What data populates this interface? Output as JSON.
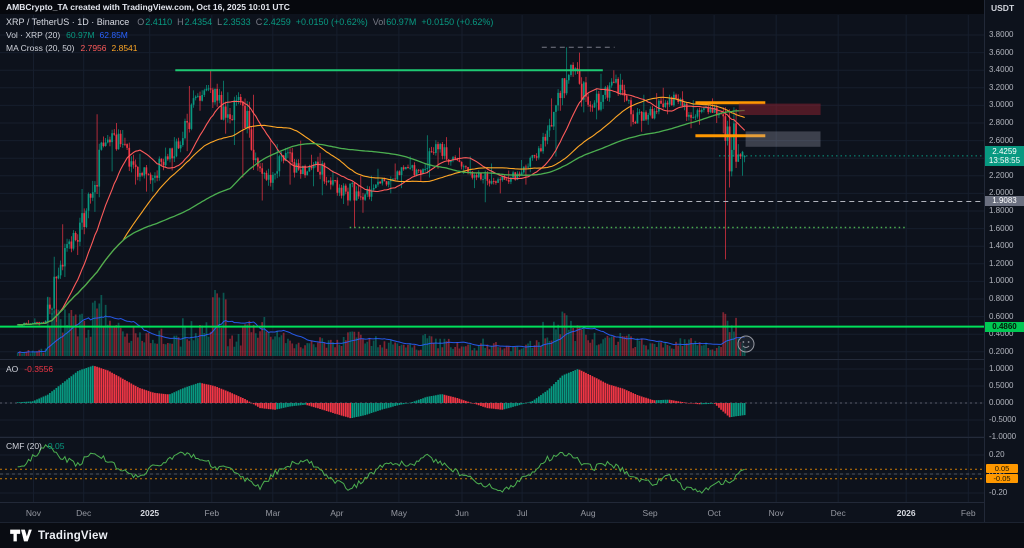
{
  "header": {
    "attribution": "AMBCrypto_TA created with TradingView.com, Oct 16, 2025 10:01 UTC",
    "currency": "USDT"
  },
  "legend": {
    "symbol": "XRP / TetherUS · 1D · Binance",
    "o_label": "O",
    "o": "2.4110",
    "h_label": "H",
    "h": "2.4354",
    "l_label": "L",
    "l": "2.3533",
    "c_label": "C",
    "c": "2.4259",
    "change": "+0.0150 (+0.62%)",
    "vol_label": "Vol",
    "vol": "60.97M",
    "change2": "+0.0150 (+0.62%)",
    "volume_indicator": {
      "title": "Vol · XRP (20)",
      "value": "60.97M",
      "ma": "62.85M"
    },
    "ma_indicator": {
      "title": "MA Cross (20, 50)",
      "ma20": "2.7956",
      "ma50": "2.8541"
    },
    "ao_indicator": {
      "title": "AO",
      "value": "-0.3556"
    },
    "cmf_indicator": {
      "title": "CMF (20)",
      "value": "0.05"
    }
  },
  "axis": {
    "price_label": "2.4259",
    "countdown": "13:58:55",
    "level_label_1": "1.9083",
    "level_label_2": "0.4860",
    "cmf_band_high": "0.05",
    "cmf_band_low": "-0.05"
  },
  "footer": {
    "brand": "TradingView"
  },
  "timeline": [
    {
      "text": "Nov",
      "t": 0.034
    },
    {
      "text": "Dec",
      "t": 0.085
    },
    {
      "text": "2025",
      "t": 0.152,
      "major": true
    },
    {
      "text": "Feb",
      "t": 0.215
    },
    {
      "text": "Mar",
      "t": 0.277
    },
    {
      "text": "Apr",
      "t": 0.342
    },
    {
      "text": "May",
      "t": 0.405
    },
    {
      "text": "Jun",
      "t": 0.469
    },
    {
      "text": "Jul",
      "t": 0.53
    },
    {
      "text": "Aug",
      "t": 0.597
    },
    {
      "text": "Sep",
      "t": 0.66
    },
    {
      "text": "Oct",
      "t": 0.725
    },
    {
      "text": "Nov",
      "t": 0.788
    },
    {
      "text": "Dec",
      "t": 0.851
    },
    {
      "text": "2026",
      "t": 0.92,
      "major": true
    },
    {
      "text": "Feb",
      "t": 0.983
    }
  ],
  "colors": {
    "bg": "#0d121c",
    "up": "#089981",
    "down": "#f23645",
    "ma20": "#ff5b5b",
    "ma50": "#ffa726",
    "ma100": "#4caf50",
    "volma": "#2962ff",
    "grid": "#161e2d",
    "text": "#d1d4dc",
    "muted": "#787b86",
    "axis_text": "#b2b5be",
    "accent_green": "#00e05a",
    "orange": "#ff9800"
  },
  "chart_data": {
    "type": "candlestick",
    "title": "XRP / TetherUS · 1D · Binance",
    "interval": "1D",
    "price_range": [
      0.2,
      3.8
    ],
    "price_tick_step": 0.2,
    "ao_ticks": [
      1,
      0.5,
      0,
      -0.5,
      -1
    ],
    "cmf_ticks": [
      0.2,
      0,
      -0.2
    ],
    "cmf_bands": [
      0.05,
      -0.05
    ],
    "data_span": [
      0.018,
      0.756
    ],
    "last_week_days": 4,
    "last_candle": [
      2.411,
      2.4354,
      2.3533,
      2.4259
    ],
    "last_close": 2.4259,
    "ma_periods": [
      20,
      50,
      100
    ],
    "volume_ma_period": 20,
    "weekly_ohlc": [
      [
        0.51,
        0.56,
        0.49,
        0.52
      ],
      [
        0.52,
        0.58,
        0.5,
        0.55
      ],
      [
        0.55,
        1.28,
        0.54,
        1.19
      ],
      [
        1.19,
        1.65,
        1.05,
        1.47
      ],
      [
        1.47,
        2.05,
        1.3,
        1.95
      ],
      [
        1.95,
        2.9,
        1.79,
        2.58
      ],
      [
        2.58,
        2.8,
        2.25,
        2.56
      ],
      [
        2.56,
        2.72,
        2.1,
        2.3
      ],
      [
        2.3,
        2.45,
        2.02,
        2.15
      ],
      [
        2.15,
        2.52,
        2.02,
        2.42
      ],
      [
        2.42,
        2.64,
        2.26,
        2.55
      ],
      [
        2.55,
        3.22,
        2.48,
        3.1
      ],
      [
        3.1,
        3.4,
        2.94,
        3.18
      ],
      [
        3.18,
        3.28,
        2.68,
        2.86
      ],
      [
        2.86,
        3.15,
        2.55,
        3.04
      ],
      [
        3.04,
        3.12,
        2.18,
        2.4
      ],
      [
        2.4,
        2.62,
        1.92,
        2.12
      ],
      [
        2.12,
        2.56,
        2.04,
        2.46
      ],
      [
        2.46,
        2.6,
        2.1,
        2.22
      ],
      [
        2.22,
        2.44,
        2.08,
        2.36
      ],
      [
        2.36,
        2.46,
        1.98,
        2.1
      ],
      [
        2.1,
        2.26,
        1.88,
        2.02
      ],
      [
        2.02,
        2.2,
        1.61,
        1.96
      ],
      [
        1.96,
        2.2,
        1.78,
        2.1
      ],
      [
        2.1,
        2.28,
        2.0,
        2.16
      ],
      [
        2.16,
        2.34,
        2.06,
        2.3
      ],
      [
        2.3,
        2.42,
        2.14,
        2.22
      ],
      [
        2.22,
        2.66,
        2.18,
        2.56
      ],
      [
        2.56,
        2.64,
        2.28,
        2.38
      ],
      [
        2.38,
        2.52,
        2.22,
        2.3
      ],
      [
        2.3,
        2.42,
        2.06,
        2.16
      ],
      [
        2.16,
        2.34,
        1.9,
        2.12
      ],
      [
        2.12,
        2.26,
        2.0,
        2.18
      ],
      [
        2.18,
        2.38,
        2.1,
        2.3
      ],
      [
        2.3,
        2.56,
        2.24,
        2.48
      ],
      [
        2.48,
        3.08,
        2.42,
        3.0
      ],
      [
        3.0,
        3.66,
        2.94,
        3.46
      ],
      [
        3.46,
        3.6,
        2.92,
        3.1
      ],
      [
        3.1,
        3.36,
        2.84,
        3.04
      ],
      [
        3.04,
        3.4,
        2.96,
        3.3
      ],
      [
        3.3,
        3.36,
        2.76,
        2.9
      ],
      [
        2.9,
        3.12,
        2.7,
        2.84
      ],
      [
        2.84,
        3.14,
        2.78,
        3.02
      ],
      [
        3.02,
        3.2,
        2.9,
        3.08
      ],
      [
        3.08,
        3.16,
        2.74,
        2.86
      ],
      [
        2.86,
        3.06,
        2.78,
        2.98
      ],
      [
        2.98,
        3.08,
        2.8,
        2.9
      ],
      [
        2.9,
        2.98,
        1.25,
        2.36
      ],
      [
        2.36,
        2.56,
        2.2,
        2.4259
      ]
    ],
    "weekly_volume": [
      8,
      10,
      95,
      70,
      60,
      80,
      45,
      40,
      30,
      35,
      30,
      50,
      45,
      85,
      30,
      45,
      60,
      35,
      25,
      20,
      25,
      25,
      40,
      25,
      20,
      18,
      18,
      30,
      22,
      18,
      18,
      22,
      15,
      15,
      20,
      45,
      60,
      40,
      30,
      30,
      30,
      25,
      20,
      20,
      25,
      20,
      15,
      70,
      25
    ],
    "weekly_ao": [
      0.02,
      0.05,
      0.25,
      0.6,
      0.95,
      1.1,
      0.95,
      0.7,
      0.45,
      0.3,
      0.25,
      0.45,
      0.6,
      0.5,
      0.32,
      0.12,
      -0.15,
      -0.2,
      -0.1,
      -0.05,
      -0.18,
      -0.32,
      -0.45,
      -0.35,
      -0.2,
      -0.08,
      0.02,
      0.18,
      0.26,
      0.15,
      0.0,
      -0.15,
      -0.2,
      -0.08,
      0.06,
      0.38,
      0.82,
      1.0,
      0.78,
      0.55,
      0.42,
      0.22,
      0.08,
      0.1,
      0.02,
      -0.04,
      -0.02,
      -0.42,
      -0.3556
    ],
    "weekly_cmf": [
      0.06,
      0.18,
      0.3,
      0.16,
      0.1,
      0.24,
      0.12,
      0.04,
      -0.04,
      0.08,
      0.16,
      0.22,
      0.18,
      0.08,
      0.04,
      -0.06,
      -0.14,
      0.02,
      0.1,
      0.16,
      0.04,
      -0.08,
      -0.16,
      -0.04,
      0.08,
      0.12,
      0.1,
      0.18,
      0.12,
      0.02,
      -0.06,
      -0.12,
      -0.18,
      -0.08,
      0.02,
      0.16,
      0.22,
      0.14,
      0.06,
      0.12,
      0.04,
      -0.06,
      -0.1,
      -0.02,
      -0.14,
      -0.2,
      -0.1,
      -0.08,
      0.05
    ],
    "levels": [
      {
        "type": "segment",
        "price": 3.4,
        "x1": 0.178,
        "x2": 0.612,
        "color": "#1ec973",
        "width": 2,
        "style": "solid"
      },
      {
        "type": "segment",
        "price": 3.66,
        "x1": 0.55,
        "x2": 0.624,
        "color": "#787b86",
        "width": 1,
        "style": "dashed"
      },
      {
        "type": "segment",
        "price": 3.03,
        "x1": 0.706,
        "x2": 0.777,
        "color": "#ff9800",
        "width": 3,
        "style": "solid"
      },
      {
        "type": "segment",
        "price": 2.655,
        "x1": 0.706,
        "x2": 0.777,
        "color": "#ff9800",
        "width": 3,
        "style": "solid"
      },
      {
        "type": "hline",
        "price": 1.9083,
        "x1": 0.515,
        "x2": 1.0,
        "color": "#b2b5be",
        "width": 1,
        "style": "dashed"
      },
      {
        "type": "segment",
        "price": 1.612,
        "x1": 0.355,
        "x2": 0.92,
        "color": "#4caf50",
        "width": 1.5,
        "style": "dotted"
      },
      {
        "type": "hline",
        "price": 0.486,
        "x1": 0.0,
        "x2": 1.0,
        "color": "#00e05a",
        "width": 2,
        "style": "solid"
      },
      {
        "type": "box",
        "price_top": 3.02,
        "price_bottom": 2.89,
        "x1": 0.75,
        "x2": 0.833,
        "fill": "rgba(135,32,48,0.55)"
      },
      {
        "type": "box",
        "price_top": 2.705,
        "price_bottom": 2.53,
        "x1": 0.757,
        "x2": 0.833,
        "fill": "rgba(168,173,188,0.30)"
      }
    ]
  }
}
